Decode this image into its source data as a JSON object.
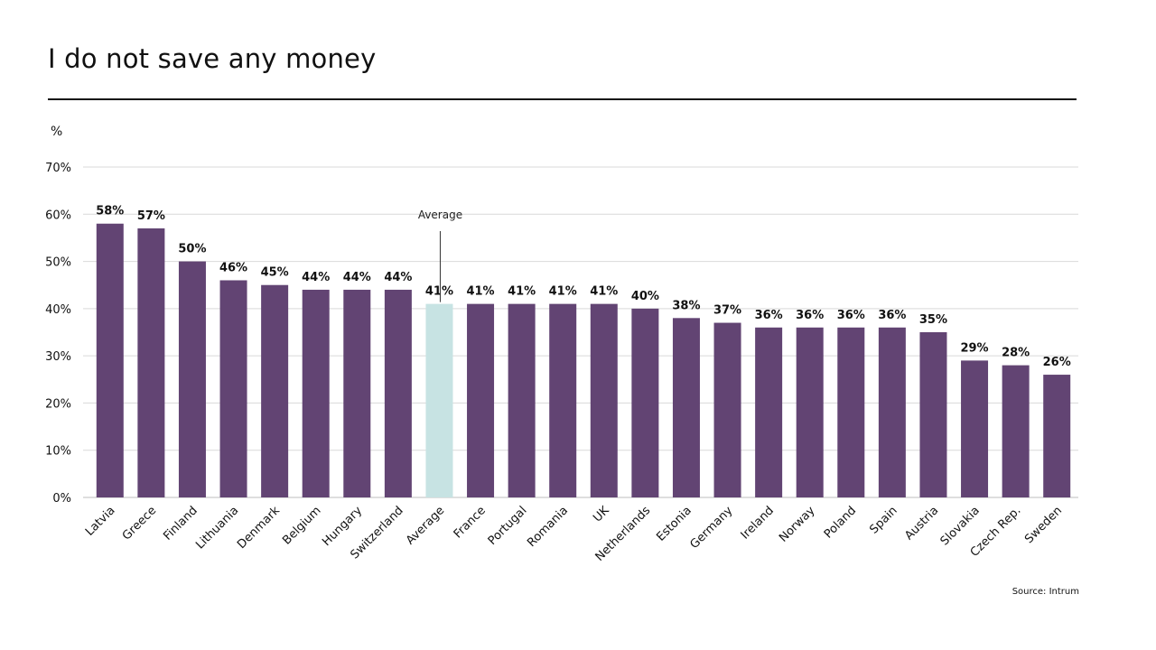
{
  "title": "I do not save any money",
  "source": "Source: Intrum",
  "colors": {
    "bar": "#624473",
    "highlight": "#c7e3e3",
    "grid": "#d9d9d9",
    "text": "#111111"
  },
  "chart_data": {
    "type": "bar",
    "title": "I do not save any money",
    "ylabel": "%",
    "ylim": [
      0,
      70
    ],
    "yticks": [
      "0%",
      "10%",
      "20%",
      "30%",
      "40%",
      "50%",
      "60%",
      "70%"
    ],
    "grid": true,
    "annotation": "Average",
    "highlight_category": "Average",
    "categories": [
      "Latvia",
      "Greece",
      "Finland",
      "Lithuania",
      "Denmark",
      "Belgium",
      "Hungary",
      "Switzerland",
      "Average",
      "France",
      "Portugal",
      "Romania",
      "UK",
      "Netherlands",
      "Estonia",
      "Germany",
      "Ireland",
      "Norway",
      "Poland",
      "Spain",
      "Austria",
      "Slovakia",
      "Czech Rep.",
      "Sweden"
    ],
    "values": [
      58,
      57,
      50,
      46,
      45,
      44,
      44,
      44,
      41,
      41,
      41,
      41,
      41,
      40,
      38,
      37,
      36,
      36,
      36,
      36,
      35,
      29,
      28,
      26
    ],
    "data_labels": [
      "58%",
      "57%",
      "50%",
      "46%",
      "45%",
      "44%",
      "44%",
      "44%",
      "41%",
      "41%",
      "41%",
      "41%",
      "41%",
      "40%",
      "38%",
      "37%",
      "36%",
      "36%",
      "36%",
      "36%",
      "35%",
      "29%",
      "28%",
      "26%"
    ]
  }
}
